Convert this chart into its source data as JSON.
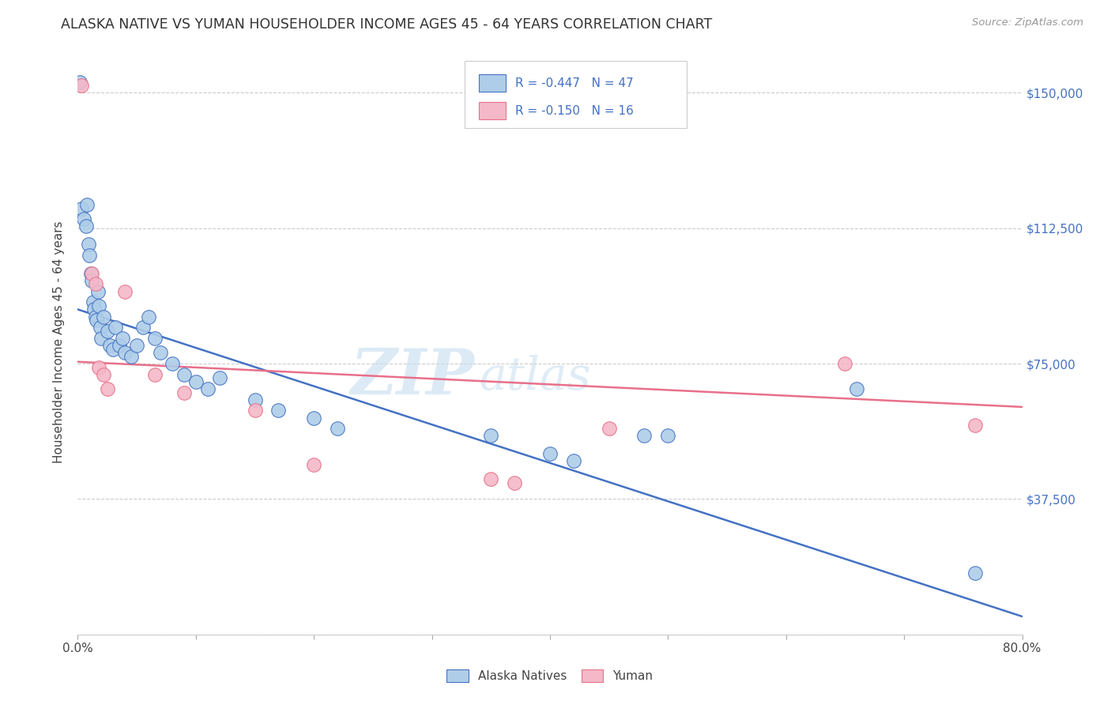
{
  "title": "ALASKA NATIVE VS YUMAN HOUSEHOLDER INCOME AGES 45 - 64 YEARS CORRELATION CHART",
  "source": "Source: ZipAtlas.com",
  "ylabel": "Householder Income Ages 45 - 64 years",
  "xlim": [
    0.0,
    0.8
  ],
  "ylim": [
    0,
    162000
  ],
  "xticks": [
    0.0,
    0.1,
    0.2,
    0.3,
    0.4,
    0.5,
    0.6,
    0.7,
    0.8
  ],
  "xticklabels": [
    "0.0%",
    "",
    "",
    "",
    "",
    "",
    "",
    "",
    "80.0%"
  ],
  "ytick_positions": [
    0,
    37500,
    75000,
    112500,
    150000
  ],
  "ytick_labels": [
    "",
    "$37,500",
    "$75,000",
    "$112,500",
    "$150,000"
  ],
  "alaska_R": -0.447,
  "alaska_N": 47,
  "yuman_R": -0.15,
  "yuman_N": 16,
  "alaska_color": "#aecde8",
  "alaska_line_color": "#4472c4",
  "yuman_color": "#f4b8c8",
  "yuman_line_color": "#e8708a",
  "watermark_zip": "ZIP",
  "watermark_atlas": "atlas",
  "legend_label_alaska": "Alaska Natives",
  "legend_label_yuman": "Yuman",
  "alaska_line_x0": 0.0,
  "alaska_line_y0": 90000,
  "alaska_line_x1": 0.8,
  "alaska_line_y1": 5000,
  "yuman_line_x0": 0.0,
  "yuman_line_y0": 75500,
  "yuman_line_x1": 0.8,
  "yuman_line_y1": 63000,
  "alaska_x": [
    0.002,
    0.003,
    0.005,
    0.007,
    0.008,
    0.009,
    0.01,
    0.011,
    0.012,
    0.013,
    0.014,
    0.015,
    0.016,
    0.017,
    0.018,
    0.019,
    0.02,
    0.022,
    0.025,
    0.027,
    0.03,
    0.032,
    0.035,
    0.038,
    0.04,
    0.045,
    0.05,
    0.055,
    0.06,
    0.065,
    0.07,
    0.08,
    0.09,
    0.1,
    0.11,
    0.12,
    0.15,
    0.17,
    0.2,
    0.22,
    0.35,
    0.4,
    0.42,
    0.48,
    0.5,
    0.66,
    0.76
  ],
  "alaska_y": [
    153000,
    118000,
    115000,
    113000,
    119000,
    108000,
    105000,
    100000,
    98000,
    92000,
    90000,
    88000,
    87000,
    95000,
    91000,
    85000,
    82000,
    88000,
    84000,
    80000,
    79000,
    85000,
    80000,
    82000,
    78000,
    77000,
    80000,
    85000,
    88000,
    82000,
    78000,
    75000,
    72000,
    70000,
    68000,
    71000,
    65000,
    62000,
    60000,
    57000,
    55000,
    50000,
    48000,
    55000,
    55000,
    68000,
    17000
  ],
  "yuman_x": [
    0.003,
    0.012,
    0.015,
    0.018,
    0.022,
    0.025,
    0.04,
    0.065,
    0.09,
    0.15,
    0.2,
    0.35,
    0.37,
    0.45,
    0.65,
    0.76
  ],
  "yuman_y": [
    152000,
    100000,
    97000,
    74000,
    72000,
    68000,
    95000,
    72000,
    67000,
    62000,
    47000,
    43000,
    42000,
    57000,
    75000,
    58000
  ]
}
